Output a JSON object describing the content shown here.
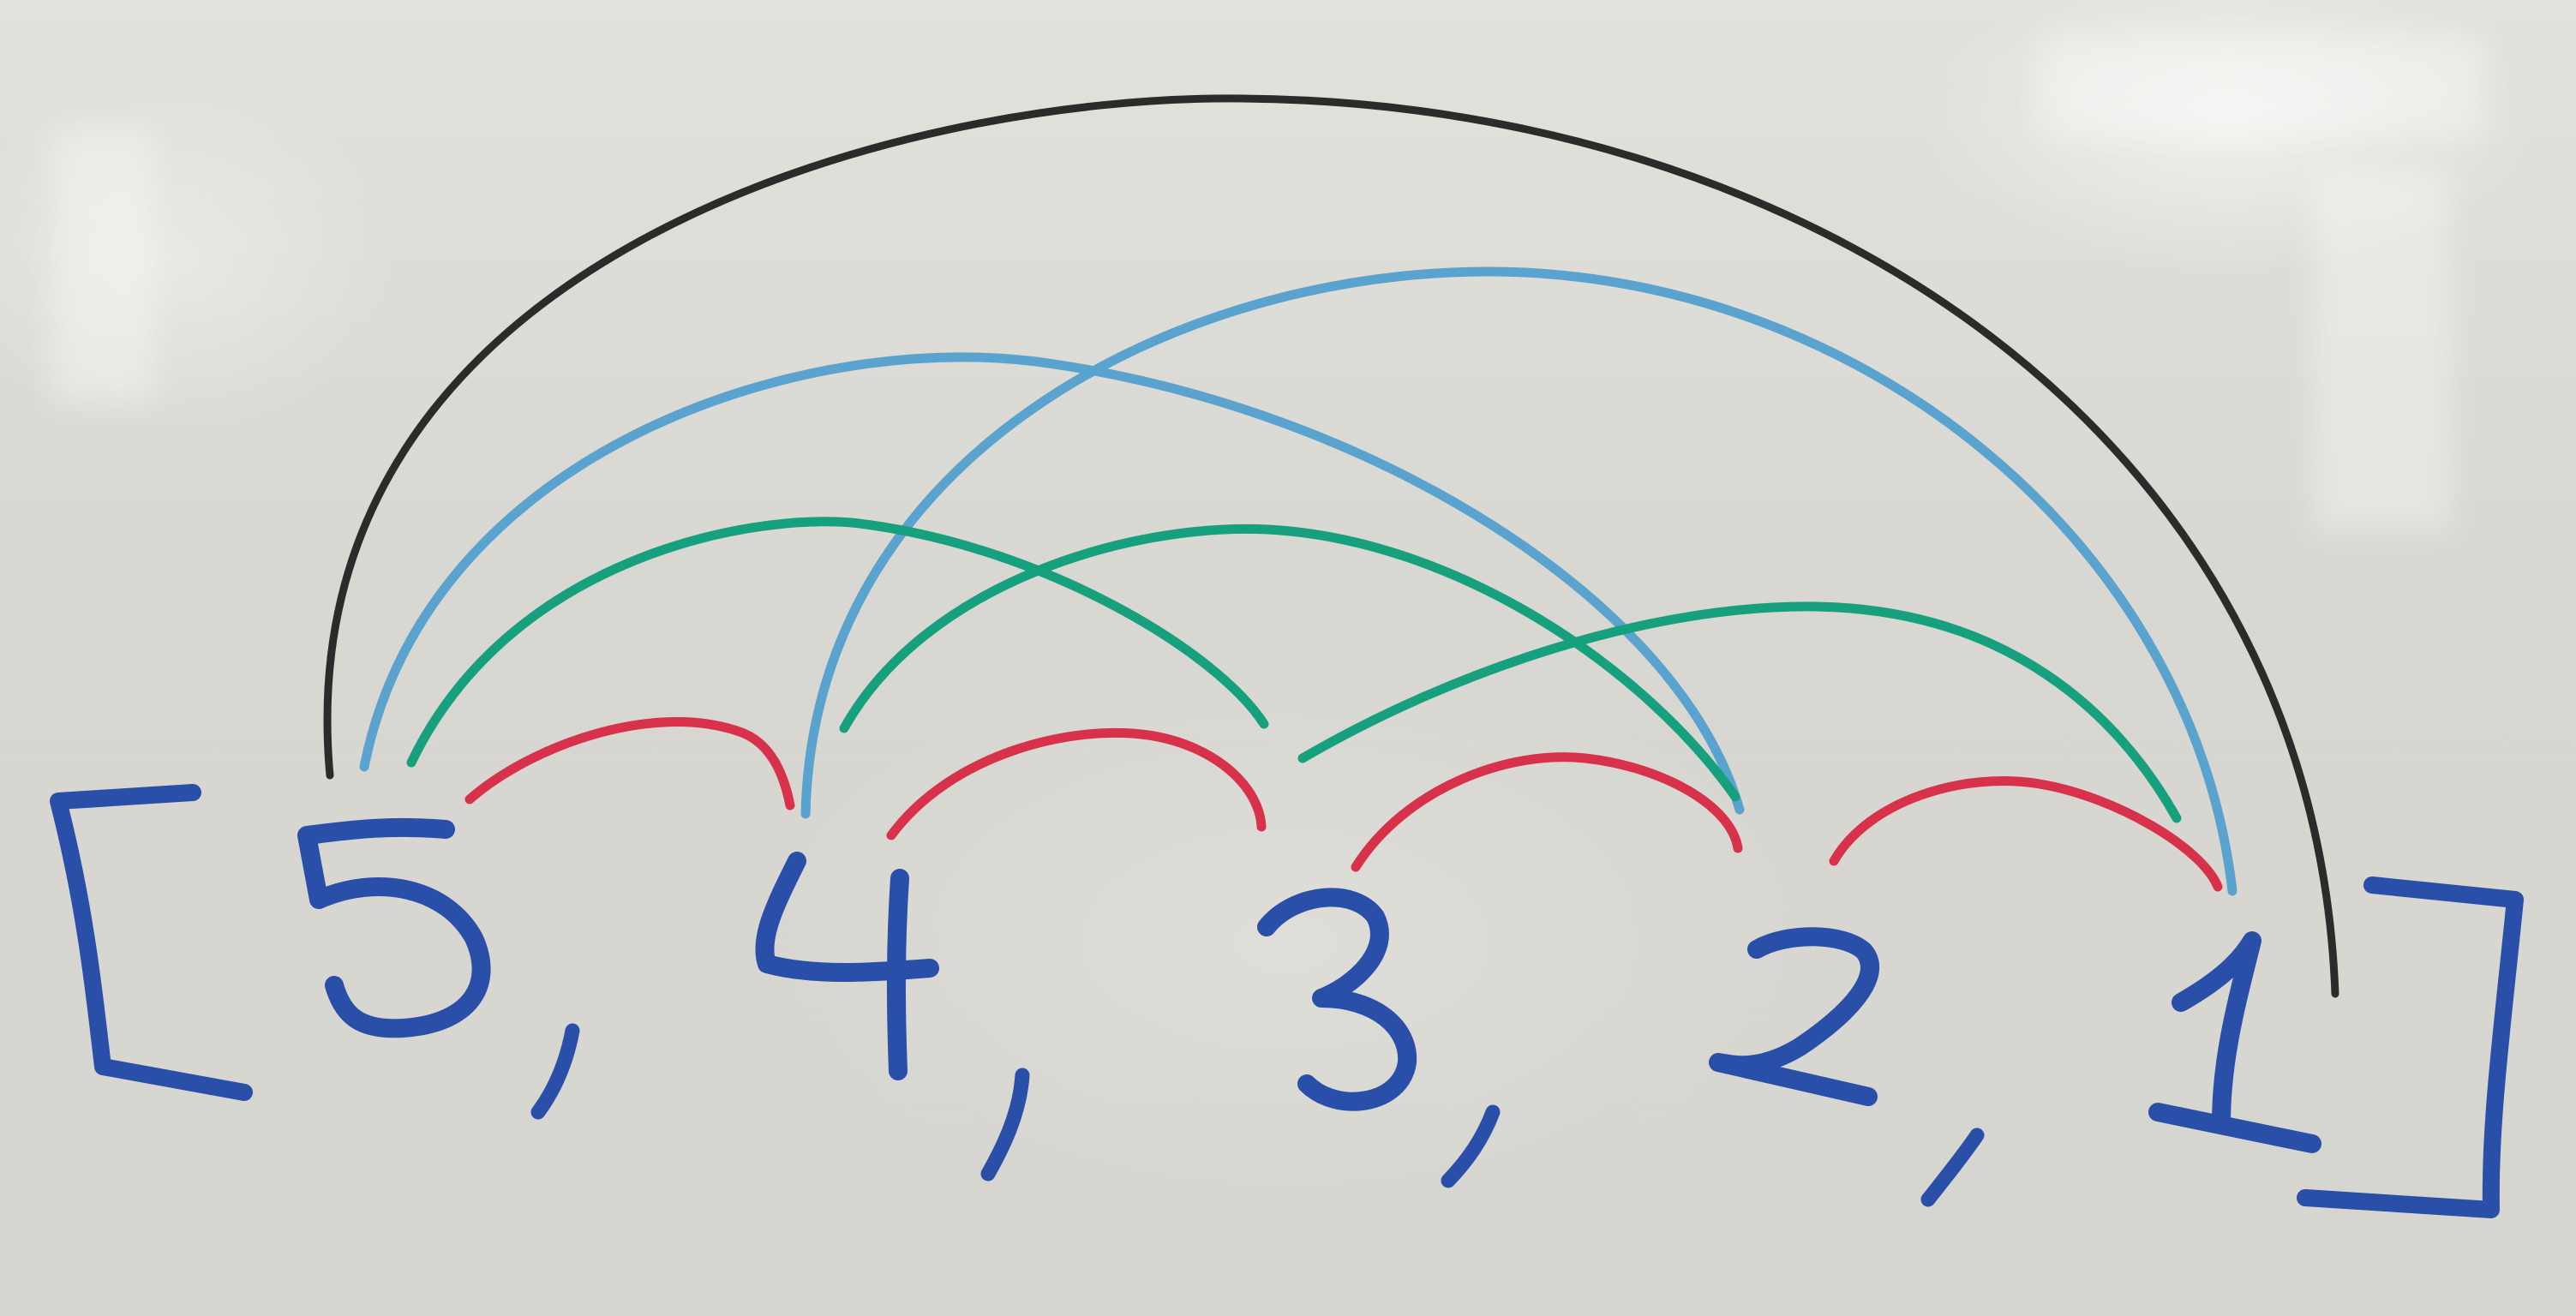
{
  "whiteboard": {
    "array_elements": [
      "5",
      "4",
      "3",
      "2",
      "1"
    ],
    "colors": {
      "digits_brackets": "#2a4fa8",
      "arc_distance_1": "#d8314a",
      "arc_distance_2": "#17a07e",
      "arc_distance_3": "#5aa3cf",
      "arc_distance_4": "#2b2b2b"
    }
  }
}
